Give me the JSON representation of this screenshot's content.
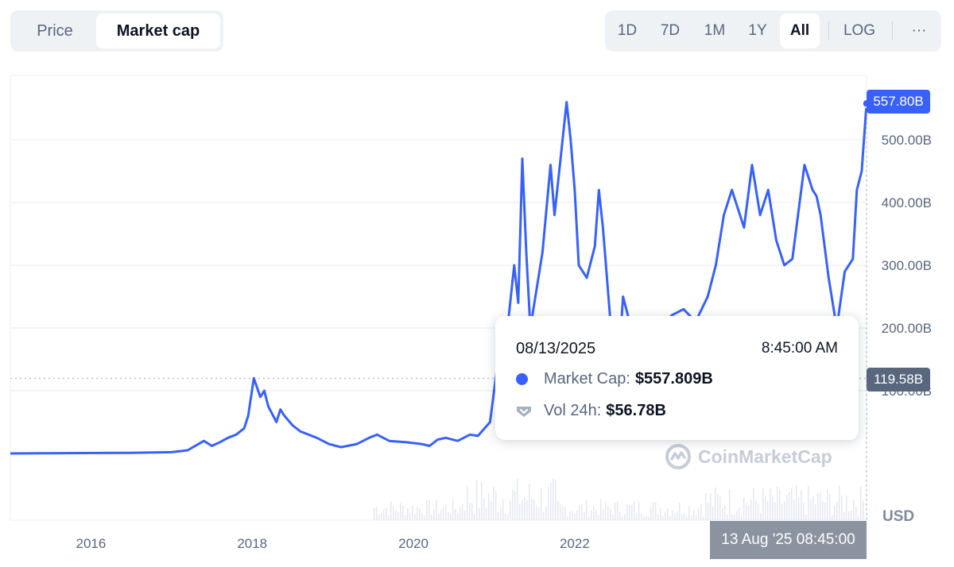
{
  "toggle": {
    "price": "Price",
    "market_cap": "Market cap"
  },
  "ranges": [
    "1D",
    "7D",
    "1M",
    "1Y",
    "All",
    "LOG"
  ],
  "active_range": "All",
  "more_label": "···",
  "tooltip": {
    "date": "08/13/2025",
    "time": "8:45:00 AM",
    "mcap_label": "Market Cap:",
    "mcap_value": "$557.809B",
    "vol_label": "Vol 24h:",
    "vol_value": "$56.78B"
  },
  "price_tag": "557.80B",
  "crosshair_tag": "119.58B",
  "x_tag": "13 Aug '25 08:45:00",
  "currency": "USD",
  "watermark": "CoinMarketCap",
  "colors": {
    "line": "#3861fb",
    "grid": "#eff2f5",
    "axis_text": "#58667e",
    "volume": "#cfd6e4"
  },
  "chart_data": {
    "type": "line",
    "y_unit": "B USD",
    "ylim": [
      0,
      600
    ],
    "y_ticks": [
      {
        "value": 100,
        "label": "100.00B"
      },
      {
        "value": 200,
        "label": "200.00B"
      },
      {
        "value": 300,
        "label": "300.00B"
      },
      {
        "value": 400,
        "label": "400.00B"
      },
      {
        "value": 500,
        "label": "500.00B"
      }
    ],
    "xlim": [
      2015.0,
      2025.62
    ],
    "x_ticks": [
      {
        "value": 2016,
        "label": "2016"
      },
      {
        "value": 2018,
        "label": "2018"
      },
      {
        "value": 2020,
        "label": "2020"
      },
      {
        "value": 2022,
        "label": "2022"
      }
    ],
    "series": [
      {
        "points": [
          [
            2015.0,
            0
          ],
          [
            2016.5,
            1
          ],
          [
            2017.0,
            2
          ],
          [
            2017.2,
            5
          ],
          [
            2017.4,
            20
          ],
          [
            2017.5,
            12
          ],
          [
            2017.6,
            18
          ],
          [
            2017.7,
            25
          ],
          [
            2017.8,
            30
          ],
          [
            2017.9,
            40
          ],
          [
            2017.95,
            60
          ],
          [
            2018.02,
            120
          ],
          [
            2018.1,
            90
          ],
          [
            2018.15,
            100
          ],
          [
            2018.2,
            75
          ],
          [
            2018.3,
            50
          ],
          [
            2018.35,
            70
          ],
          [
            2018.4,
            60
          ],
          [
            2018.5,
            45
          ],
          [
            2018.6,
            35
          ],
          [
            2018.8,
            25
          ],
          [
            2018.95,
            15
          ],
          [
            2019.1,
            10
          ],
          [
            2019.3,
            15
          ],
          [
            2019.45,
            25
          ],
          [
            2019.55,
            30
          ],
          [
            2019.7,
            20
          ],
          [
            2019.9,
            18
          ],
          [
            2020.1,
            15
          ],
          [
            2020.2,
            12
          ],
          [
            2020.3,
            22
          ],
          [
            2020.4,
            25
          ],
          [
            2020.55,
            20
          ],
          [
            2020.7,
            30
          ],
          [
            2020.8,
            28
          ],
          [
            2020.95,
            50
          ],
          [
            2021.0,
            100
          ],
          [
            2021.1,
            200
          ],
          [
            2021.15,
            180
          ],
          [
            2021.25,
            300
          ],
          [
            2021.3,
            240
          ],
          [
            2021.35,
            470
          ],
          [
            2021.4,
            320
          ],
          [
            2021.45,
            200
          ],
          [
            2021.5,
            240
          ],
          [
            2021.6,
            320
          ],
          [
            2021.7,
            460
          ],
          [
            2021.75,
            380
          ],
          [
            2021.8,
            440
          ],
          [
            2021.9,
            560
          ],
          [
            2021.95,
            500
          ],
          [
            2022.0,
            420
          ],
          [
            2022.05,
            300
          ],
          [
            2022.15,
            280
          ],
          [
            2022.25,
            330
          ],
          [
            2022.3,
            420
          ],
          [
            2022.35,
            360
          ],
          [
            2022.45,
            200
          ],
          [
            2022.55,
            150
          ],
          [
            2022.6,
            250
          ],
          [
            2022.7,
            200
          ],
          [
            2022.8,
            150
          ],
          [
            2023.0,
            150
          ],
          [
            2023.1,
            200
          ],
          [
            2023.2,
            220
          ],
          [
            2023.35,
            230
          ],
          [
            2023.5,
            210
          ],
          [
            2023.65,
            250
          ],
          [
            2023.75,
            300
          ],
          [
            2023.85,
            380
          ],
          [
            2023.95,
            420
          ],
          [
            2024.1,
            360
          ],
          [
            2024.2,
            460
          ],
          [
            2024.3,
            380
          ],
          [
            2024.4,
            420
          ],
          [
            2024.5,
            340
          ],
          [
            2024.6,
            300
          ],
          [
            2024.7,
            310
          ],
          [
            2024.85,
            460
          ],
          [
            2024.95,
            420
          ],
          [
            2025.0,
            410
          ],
          [
            2025.05,
            380
          ],
          [
            2025.15,
            280
          ],
          [
            2025.25,
            200
          ],
          [
            2025.35,
            290
          ],
          [
            2025.45,
            310
          ],
          [
            2025.5,
            420
          ],
          [
            2025.56,
            450
          ],
          [
            2025.62,
            557.8
          ]
        ]
      }
    ],
    "current_value": 557.8,
    "crosshair_value": 119.58
  }
}
